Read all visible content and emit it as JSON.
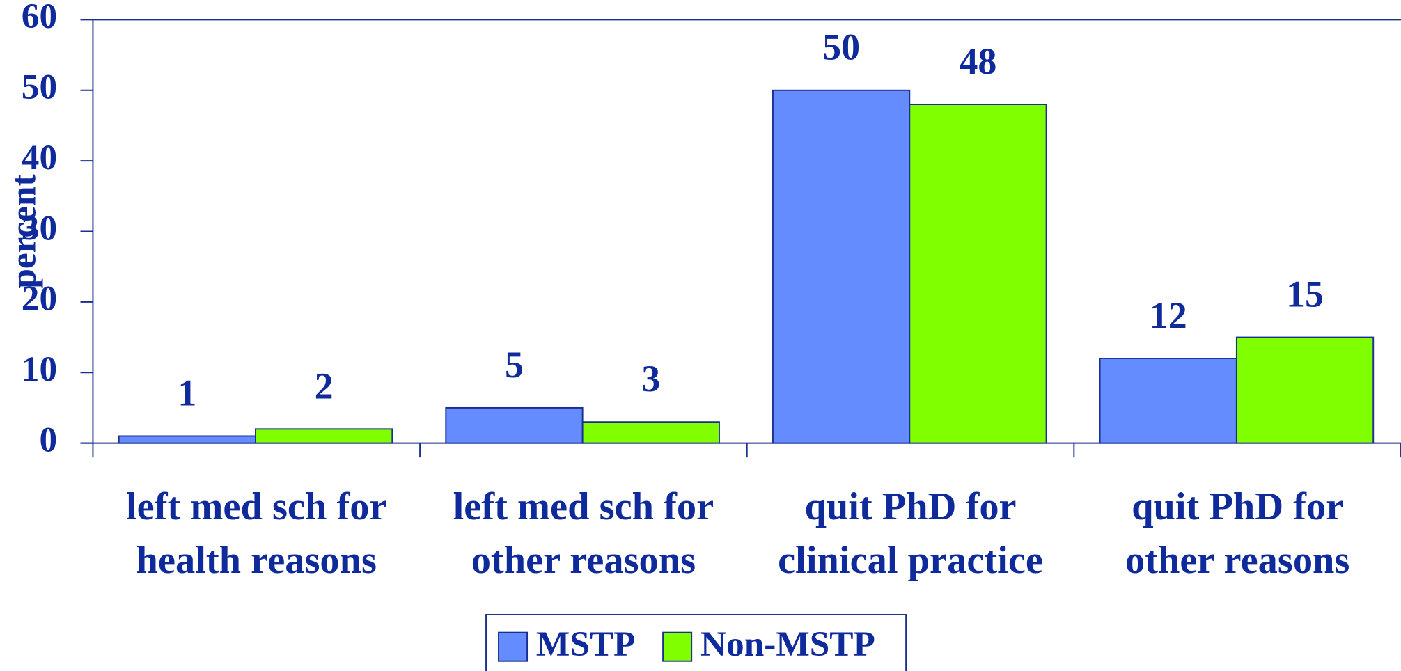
{
  "chart_data": {
    "type": "bar",
    "y_label": "percent",
    "categories": [
      [
        "left med sch for",
        "health reasons"
      ],
      [
        "left med sch for",
        "other reasons"
      ],
      [
        "quit PhD for",
        "clinical practice"
      ],
      [
        "quit PhD for",
        "other reasons"
      ]
    ],
    "series": [
      {
        "name": "MSTP",
        "color": "#648cff",
        "values": [
          1,
          5,
          50,
          12
        ]
      },
      {
        "name": "Non-MSTP",
        "color": "#80ff00",
        "values": [
          2,
          3,
          48,
          15
        ]
      }
    ],
    "ylim": [
      0,
      60
    ],
    "yticks": [
      0,
      10,
      20,
      30,
      40,
      50,
      60
    ],
    "grid": false,
    "legend": "bottom"
  }
}
